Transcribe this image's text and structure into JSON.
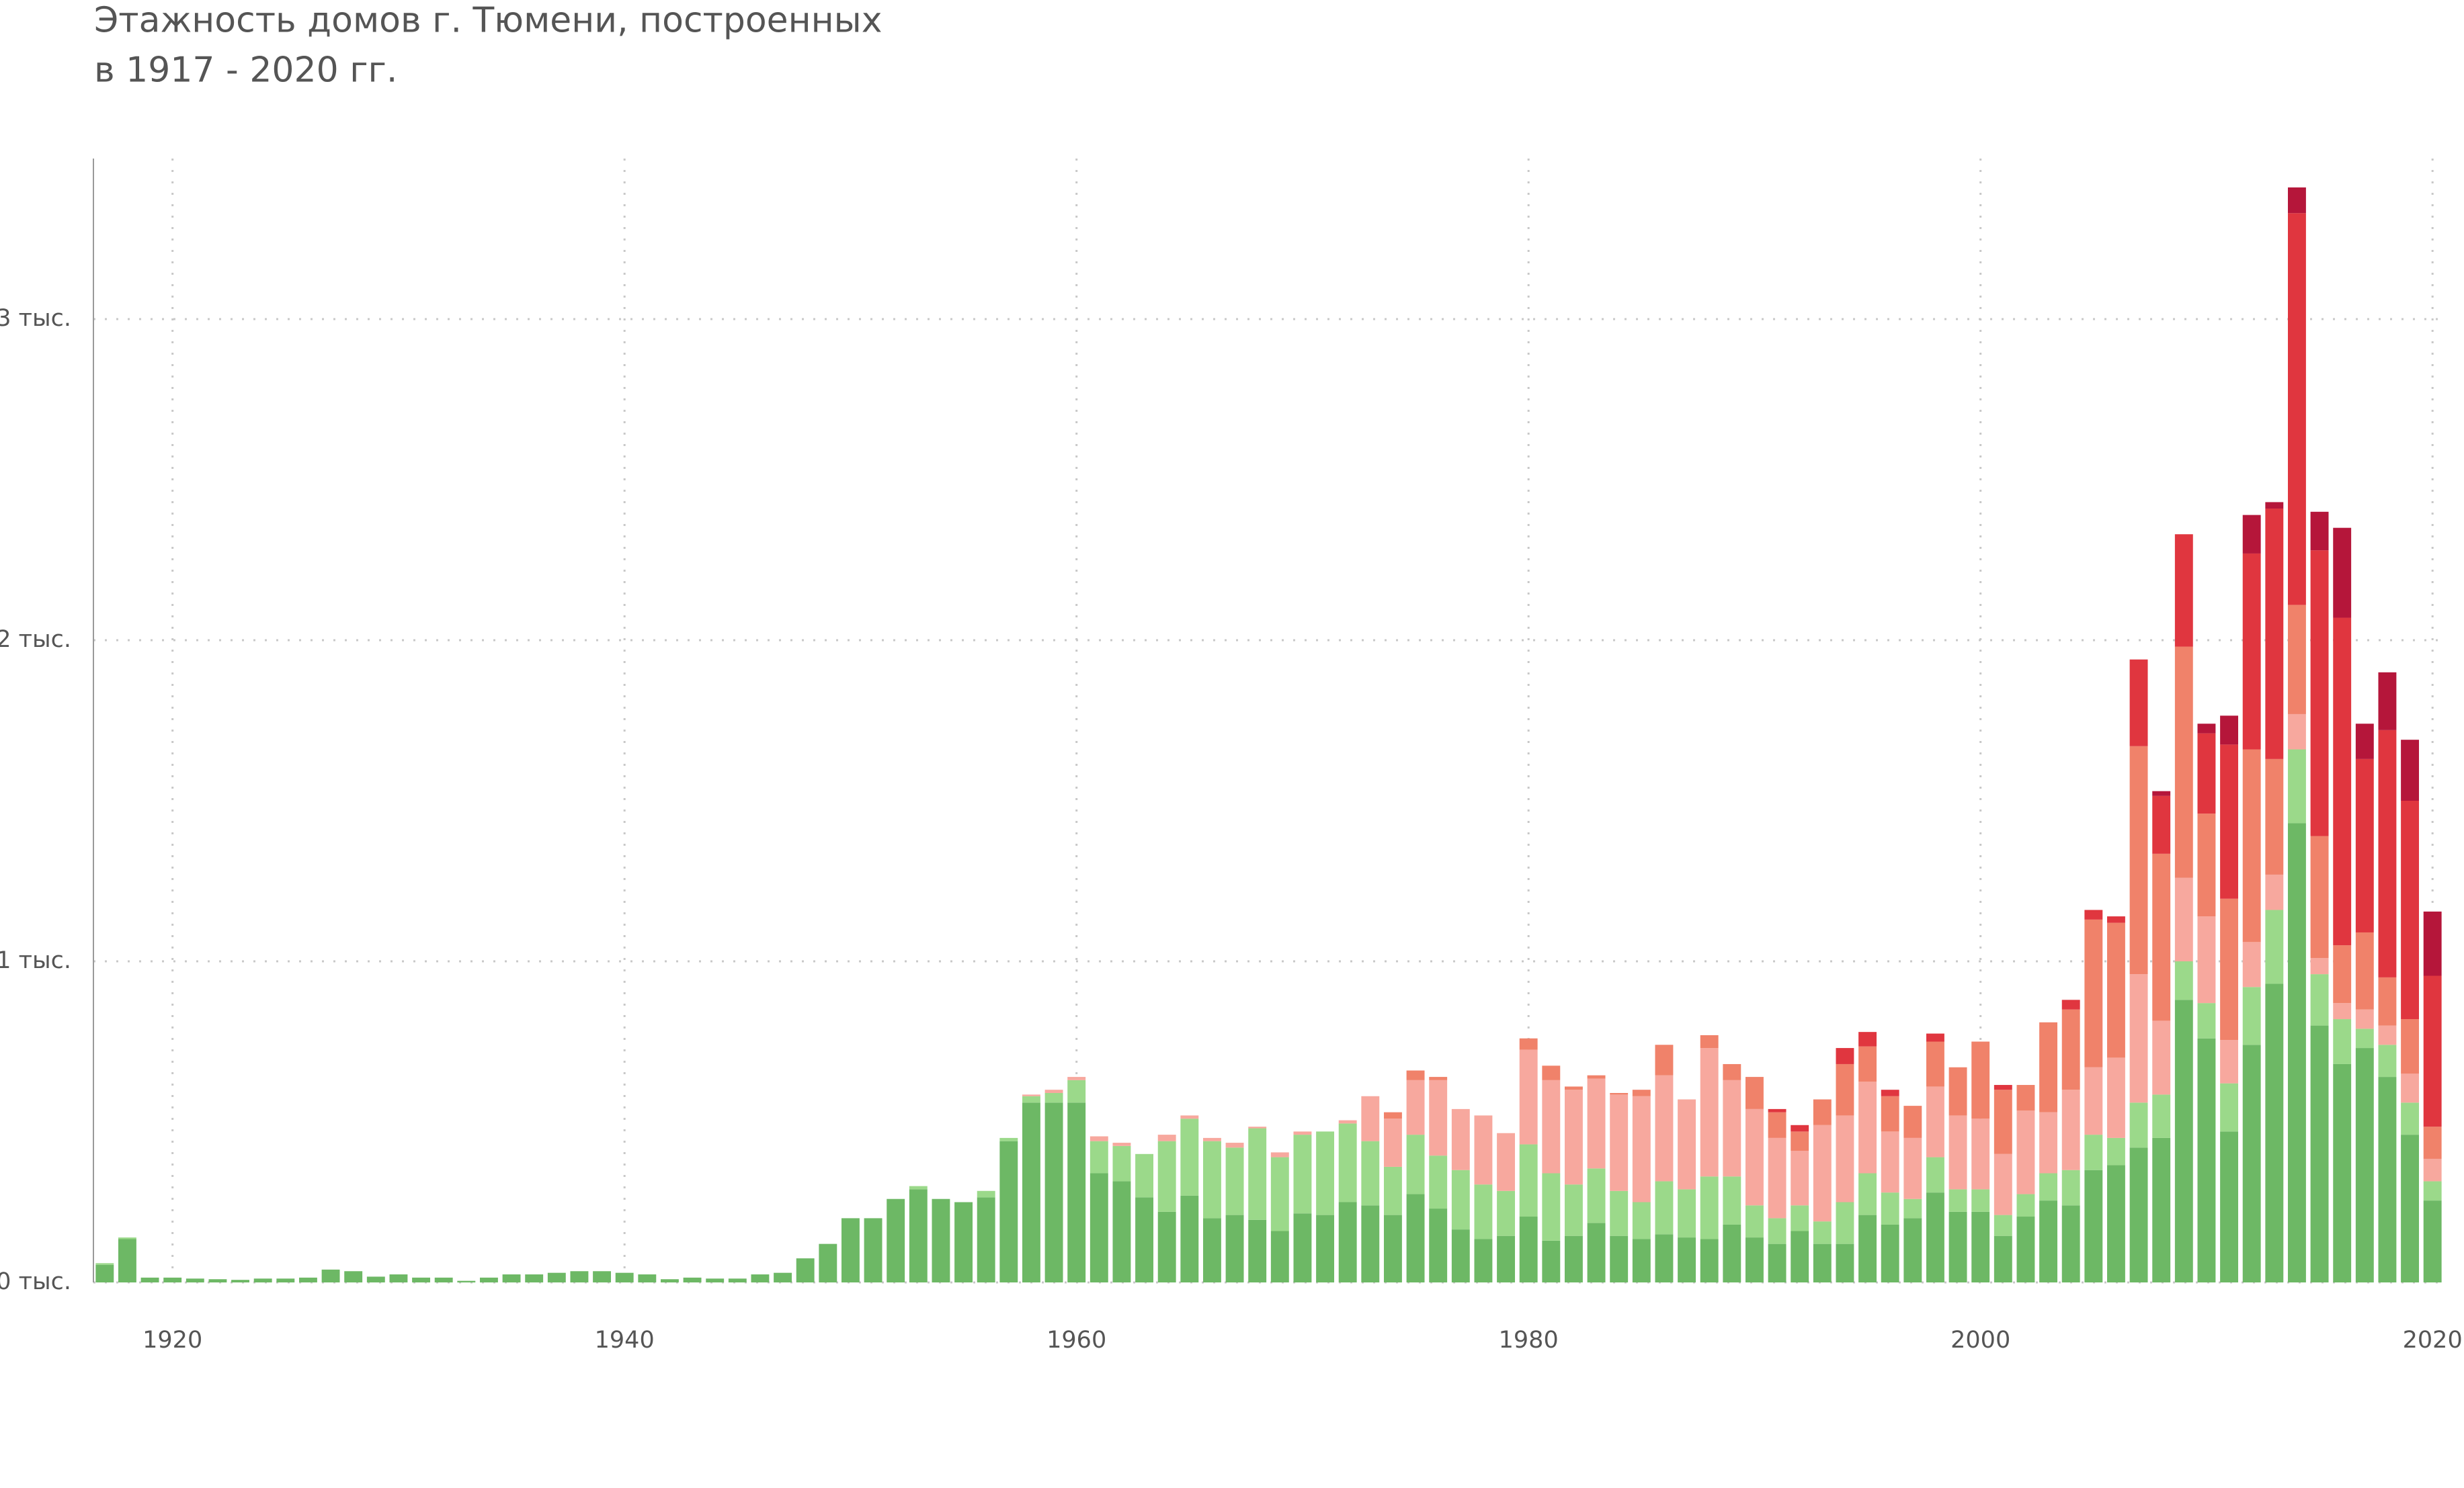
{
  "chart_data": {
    "type": "stacked-bar",
    "title": [
      "Этажность домов г. Тюмени, построенных",
      "в 1917 - 2020 гг."
    ],
    "x": [
      1917,
      1918,
      1919,
      1920,
      1921,
      1922,
      1923,
      1924,
      1925,
      1926,
      1927,
      1928,
      1929,
      1930,
      1931,
      1932,
      1933,
      1934,
      1935,
      1936,
      1937,
      1938,
      1939,
      1940,
      1941,
      1942,
      1943,
      1944,
      1945,
      1946,
      1947,
      1948,
      1949,
      1950,
      1951,
      1952,
      1953,
      1954,
      1955,
      1956,
      1957,
      1958,
      1959,
      1960,
      1961,
      1962,
      1963,
      1964,
      1965,
      1966,
      1967,
      1968,
      1969,
      1970,
      1971,
      1972,
      1973,
      1974,
      1975,
      1976,
      1977,
      1978,
      1979,
      1980,
      1981,
      1982,
      1983,
      1984,
      1985,
      1986,
      1987,
      1988,
      1989,
      1990,
      1991,
      1992,
      1993,
      1994,
      1995,
      1996,
      1997,
      1998,
      1999,
      2000,
      2001,
      2002,
      2003,
      2004,
      2005,
      2006,
      2007,
      2008,
      2009,
      2010,
      2011,
      2012,
      2013,
      2014,
      2015,
      2016,
      2017,
      2018,
      2019,
      2020
    ],
    "xlim": [
      1916.5,
      2020.5
    ],
    "xticks": [
      1920,
      1940,
      1960,
      1980,
      2000,
      2020
    ],
    "ylim": [
      0,
      3500
    ],
    "yticks": [
      {
        "value": 0,
        "label": "0 тыс."
      },
      {
        "value": 1000,
        "label": "1 тыс."
      },
      {
        "value": 2000,
        "label": "2 тыс."
      },
      {
        "value": 3000,
        "label": "3 тыс."
      }
    ],
    "grid": true,
    "series": [
      {
        "color": "#6db865",
        "values": [
          55,
          135,
          15,
          15,
          12,
          10,
          8,
          12,
          12,
          15,
          40,
          35,
          18,
          25,
          15,
          15,
          5,
          15,
          25,
          25,
          30,
          35,
          35,
          30,
          25,
          10,
          15,
          12,
          12,
          25,
          30,
          75,
          120,
          200,
          200,
          260,
          290,
          260,
          250,
          265,
          440,
          560,
          560,
          560,
          340,
          315,
          265,
          220,
          270,
          200,
          210,
          195,
          160,
          215,
          210,
          250,
          240,
          210,
          275,
          230,
          165,
          135,
          145,
          205,
          130,
          145,
          185,
          145,
          135,
          150,
          140,
          135,
          180,
          140,
          120,
          160,
          120,
          120,
          210,
          180,
          200,
          280,
          220,
          220,
          145,
          205,
          255,
          240,
          350,
          365,
          420,
          450,
          880,
          760,
          470,
          740,
          930,
          1430,
          800,
          680,
          730,
          640,
          460,
          255
        ]
      },
      {
        "color": "#9bd98a",
        "values": [
          5,
          5,
          0,
          0,
          0,
          0,
          0,
          0,
          0,
          0,
          0,
          0,
          0,
          0,
          0,
          0,
          0,
          0,
          0,
          0,
          0,
          0,
          0,
          0,
          0,
          0,
          0,
          0,
          0,
          0,
          0,
          0,
          0,
          0,
          0,
          0,
          10,
          0,
          0,
          20,
          10,
          20,
          30,
          70,
          100,
          110,
          135,
          220,
          240,
          240,
          210,
          285,
          230,
          245,
          260,
          245,
          200,
          150,
          185,
          165,
          185,
          170,
          140,
          225,
          210,
          160,
          170,
          140,
          115,
          165,
          150,
          195,
          150,
          100,
          80,
          80,
          70,
          130,
          130,
          100,
          60,
          110,
          70,
          70,
          65,
          70,
          85,
          110,
          110,
          85,
          140,
          135,
          120,
          110,
          150,
          180,
          230,
          230,
          160,
          140,
          60,
          100,
          100,
          60
        ]
      },
      {
        "color": "#f7a89e",
        "values": [
          0,
          0,
          0,
          0,
          0,
          0,
          0,
          0,
          0,
          0,
          0,
          0,
          0,
          0,
          0,
          0,
          0,
          0,
          0,
          0,
          0,
          0,
          0,
          0,
          0,
          0,
          0,
          0,
          0,
          0,
          0,
          0,
          0,
          0,
          0,
          0,
          0,
          0,
          0,
          0,
          0,
          5,
          10,
          10,
          15,
          10,
          0,
          20,
          10,
          10,
          15,
          5,
          15,
          10,
          0,
          10,
          140,
          150,
          170,
          235,
          190,
          215,
          180,
          295,
          290,
          295,
          280,
          300,
          330,
          330,
          280,
          400,
          300,
          300,
          250,
          170,
          300,
          270,
          285,
          190,
          190,
          220,
          230,
          220,
          190,
          260,
          190,
          250,
          210,
          250,
          400,
          230,
          260,
          270,
          135,
          140,
          110,
          110,
          50,
          50,
          60,
          60,
          90,
          70
        ]
      },
      {
        "color": "#f0826a",
        "values": [
          0,
          0,
          0,
          0,
          0,
          0,
          0,
          0,
          0,
          0,
          0,
          0,
          0,
          0,
          0,
          0,
          0,
          0,
          0,
          0,
          0,
          0,
          0,
          0,
          0,
          0,
          0,
          0,
          0,
          0,
          0,
          0,
          0,
          0,
          0,
          0,
          0,
          0,
          0,
          0,
          0,
          0,
          0,
          0,
          0,
          0,
          0,
          0,
          0,
          0,
          0,
          0,
          0,
          0,
          0,
          0,
          0,
          20,
          30,
          10,
          0,
          0,
          0,
          35,
          45,
          10,
          10,
          5,
          20,
          95,
          0,
          40,
          50,
          100,
          80,
          60,
          80,
          160,
          110,
          110,
          100,
          140,
          150,
          240,
          200,
          80,
          280,
          250,
          460,
          420,
          710,
          520,
          720,
          320,
          440,
          600,
          360,
          340,
          380,
          180,
          240,
          150,
          170,
          100
        ]
      },
      {
        "color": "#e0363f",
        "values": [
          0,
          0,
          0,
          0,
          0,
          0,
          0,
          0,
          0,
          0,
          0,
          0,
          0,
          0,
          0,
          0,
          0,
          0,
          0,
          0,
          0,
          0,
          0,
          0,
          0,
          0,
          0,
          0,
          0,
          0,
          0,
          0,
          0,
          0,
          0,
          0,
          0,
          0,
          0,
          0,
          0,
          0,
          0,
          0,
          0,
          0,
          0,
          0,
          0,
          0,
          0,
          0,
          0,
          0,
          0,
          0,
          0,
          0,
          0,
          0,
          0,
          0,
          0,
          0,
          0,
          0,
          0,
          0,
          0,
          0,
          0,
          0,
          0,
          0,
          10,
          20,
          0,
          50,
          45,
          20,
          0,
          25,
          0,
          0,
          15,
          0,
          0,
          30,
          30,
          20,
          270,
          180,
          350,
          250,
          480,
          610,
          780,
          1220,
          890,
          1020,
          540,
          770,
          680,
          470
        ]
      },
      {
        "color": "#b5163a",
        "values": [
          0,
          0,
          0,
          0,
          0,
          0,
          0,
          0,
          0,
          0,
          0,
          0,
          0,
          0,
          0,
          0,
          0,
          0,
          0,
          0,
          0,
          0,
          0,
          0,
          0,
          0,
          0,
          0,
          0,
          0,
          0,
          0,
          0,
          0,
          0,
          0,
          0,
          0,
          0,
          0,
          0,
          0,
          0,
          0,
          0,
          0,
          0,
          0,
          0,
          0,
          0,
          0,
          0,
          0,
          0,
          0,
          0,
          0,
          0,
          0,
          0,
          0,
          0,
          0,
          0,
          0,
          0,
          0,
          0,
          0,
          0,
          0,
          0,
          0,
          0,
          0,
          0,
          0,
          0,
          0,
          0,
          0,
          0,
          0,
          0,
          0,
          0,
          0,
          0,
          0,
          0,
          15,
          0,
          30,
          90,
          120,
          20,
          80,
          120,
          280,
          110,
          180,
          190,
          200
        ]
      }
    ]
  }
}
